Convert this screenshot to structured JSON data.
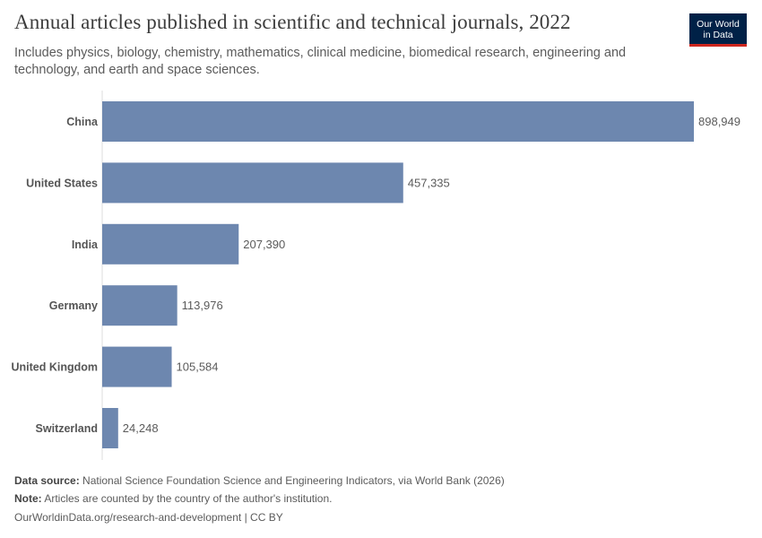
{
  "header": {
    "title": "Annual articles published in scientific and technical journals, 2022",
    "subtitle": "Includes physics, biology, chemistry, mathematics, clinical medicine, biomedical research, engineering and technology, and earth and space sciences.",
    "logo_line1": "Our World",
    "logo_line2": "in Data"
  },
  "chart_data": {
    "type": "bar",
    "orientation": "horizontal",
    "title": "Annual articles published in scientific and technical journals, 2022",
    "categories": [
      "China",
      "United States",
      "India",
      "Germany",
      "United Kingdom",
      "Switzerland"
    ],
    "values": [
      898949,
      457335,
      207390,
      113976,
      105584,
      24248
    ],
    "value_labels": [
      "898,949",
      "457,335",
      "207,390",
      "113,976",
      "105,584",
      "24,248"
    ],
    "xlim": [
      0,
      898949
    ],
    "xlabel": "",
    "ylabel": "",
    "grid": false,
    "bar_color": "#6d87af"
  },
  "footer": {
    "source_label": "Data source:",
    "source_text": "National Science Foundation Science and Engineering Indicators, via World Bank (2026)",
    "note_label": "Note:",
    "note_text": "Articles are counted by the country of the author's institution.",
    "credit": "OurWorldinData.org/research-and-development | CC BY"
  }
}
